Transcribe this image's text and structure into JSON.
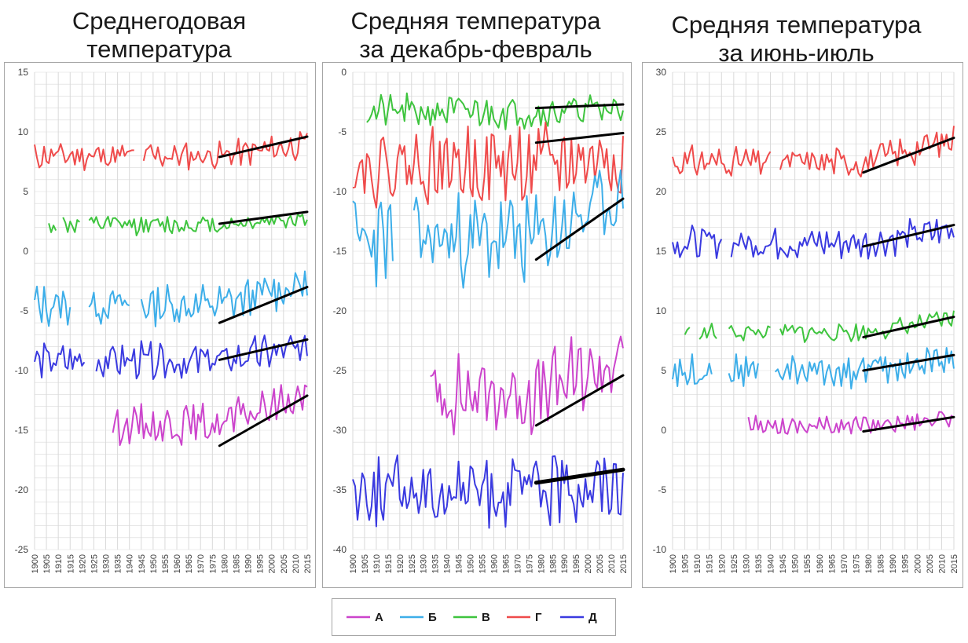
{
  "colors": {
    "A": "#cc44cc",
    "B": "#3daee9",
    "C": "#3ec43e",
    "D": "#ef4b4b",
    "E": "#3a3ae0",
    "trend": "#000000",
    "grid": "#d9d9d9"
  },
  "legend": {
    "items": [
      {
        "key": "A",
        "label": "А"
      },
      {
        "key": "B",
        "label": "Б"
      },
      {
        "key": "C",
        "label": "В"
      },
      {
        "key": "D",
        "label": "Г"
      },
      {
        "key": "E",
        "label": "Д"
      }
    ]
  },
  "chart_data": [
    {
      "type": "line",
      "title": "Среднегодовая температура",
      "title_lines": [
        "Среднегодовая",
        "температура"
      ],
      "xlim": [
        1900,
        2015
      ],
      "ylim": [
        -25,
        15
      ],
      "yticks": [
        15,
        10,
        5,
        0,
        -5,
        -10,
        -15,
        -20,
        -25
      ],
      "series": [
        {
          "key": "D",
          "name": "Г",
          "start": 1900,
          "end": 2015,
          "base": 8.0,
          "amp": 1.0,
          "slope": 0.0,
          "late_slope": 0.025,
          "gaps": [
            [
              1943,
              1945
            ]
          ],
          "seed": 11
        },
        {
          "key": "C",
          "name": "В",
          "start": 1906,
          "end": 2015,
          "base": 2.2,
          "amp": 0.7,
          "slope": 0.0,
          "late_slope": 0.018,
          "gaps": [
            [
              1910,
              1911
            ],
            [
              1920,
              1922
            ]
          ],
          "seed": 12
        },
        {
          "key": "B",
          "name": "Б",
          "start": 1900,
          "end": 2015,
          "base": -4.5,
          "amp": 1.5,
          "slope": 0.0,
          "late_slope": 0.05,
          "gaps": [
            [
              1916,
              1922
            ],
            [
              1941,
              1944
            ]
          ],
          "seed": 13
        },
        {
          "key": "E",
          "name": "Д",
          "start": 1900,
          "end": 2015,
          "base": -9.2,
          "amp": 1.3,
          "slope": 0.0,
          "late_slope": 0.03,
          "gaps": [
            [
              1922,
              1925
            ]
          ],
          "seed": 14
        },
        {
          "key": "A",
          "name": "А",
          "start": 1933,
          "end": 2015,
          "base": -14.5,
          "amp": 1.4,
          "slope": 0.0,
          "late_slope": 0.07,
          "gaps": [],
          "seed": 15
        }
      ],
      "trends": [
        {
          "x": [
            1978,
            2015
          ],
          "y": [
            7.9,
            9.6
          ],
          "w": 3
        },
        {
          "x": [
            1978,
            2015
          ],
          "y": [
            2.3,
            3.3
          ],
          "w": 3
        },
        {
          "x": [
            1978,
            2015
          ],
          "y": [
            -6.0,
            -3.0
          ],
          "w": 3
        },
        {
          "x": [
            1978,
            2015
          ],
          "y": [
            -9.1,
            -7.4
          ],
          "w": 3
        },
        {
          "x": [
            1978,
            2015
          ],
          "y": [
            -16.3,
            -12.1
          ],
          "w": 3
        }
      ]
    },
    {
      "type": "line",
      "title": "Средняя температура за декабрь-февраль",
      "title_lines": [
        "Средняя температура",
        "за декабрь-февраль"
      ],
      "xlim": [
        1900,
        2015
      ],
      "ylim": [
        -40,
        0
      ],
      "yticks": [
        0,
        -5,
        -10,
        -15,
        -20,
        -25,
        -30,
        -35,
        -40
      ],
      "series": [
        {
          "key": "C",
          "name": "В",
          "start": 1906,
          "end": 2015,
          "base": -3.3,
          "amp": 1.2,
          "slope": 0.0,
          "late_slope": 0.006,
          "gaps": [],
          "seed": 21
        },
        {
          "key": "D",
          "name": "Г",
          "start": 1900,
          "end": 2015,
          "base": -7.8,
          "amp": 2.8,
          "slope": 0.0,
          "late_slope": 0.02,
          "gaps": [],
          "seed": 22
        },
        {
          "key": "B",
          "name": "Б",
          "start": 1900,
          "end": 2015,
          "base": -14.0,
          "amp": 3.2,
          "slope": 0.0,
          "late_slope": 0.1,
          "gaps": [
            [
              1918,
              1925
            ]
          ],
          "seed": 23
        },
        {
          "key": "A",
          "name": "А",
          "start": 1933,
          "end": 2015,
          "base": -27.0,
          "amp": 2.8,
          "slope": 0.0,
          "late_slope": 0.08,
          "gaps": [],
          "seed": 24
        },
        {
          "key": "E",
          "name": "Д",
          "start": 1900,
          "end": 2015,
          "base": -35.0,
          "amp": 2.6,
          "slope": 0.0,
          "late_slope": 0.02,
          "gaps": [],
          "seed": 25
        }
      ],
      "trends": [
        {
          "x": [
            1978,
            2015
          ],
          "y": [
            -3.0,
            -2.7
          ],
          "w": 3
        },
        {
          "x": [
            1978,
            2015
          ],
          "y": [
            -5.9,
            -5.1
          ],
          "w": 3
        },
        {
          "x": [
            1978,
            2015
          ],
          "y": [
            -15.7,
            -10.6
          ],
          "w": 3
        },
        {
          "x": [
            1978,
            2015
          ],
          "y": [
            -29.6,
            -25.4
          ],
          "w": 3
        },
        {
          "x": [
            1978,
            2015
          ],
          "y": [
            -34.4,
            -33.3
          ],
          "w": 5
        }
      ]
    },
    {
      "type": "line",
      "title": "Средняя температура за июнь-июль",
      "title_lines": [
        "Средняя температура",
        "за июнь-июль"
      ],
      "xlim": [
        1900,
        2015
      ],
      "ylim": [
        -10,
        30
      ],
      "yticks": [
        30,
        25,
        20,
        15,
        10,
        5,
        0,
        -5,
        -10
      ],
      "series": [
        {
          "key": "D",
          "name": "Г",
          "start": 1900,
          "end": 2015,
          "base": 22.5,
          "amp": 1.1,
          "slope": 0.0,
          "late_slope": 0.05,
          "gaps": [
            [
              1941,
              1943
            ]
          ],
          "seed": 31
        },
        {
          "key": "E",
          "name": "Д",
          "start": 1900,
          "end": 2015,
          "base": 15.7,
          "amp": 1.2,
          "slope": 0.0,
          "late_slope": 0.03,
          "gaps": [
            [
              1921,
              1923
            ]
          ],
          "seed": 32
        },
        {
          "key": "C",
          "name": "В",
          "start": 1905,
          "end": 2015,
          "base": 8.2,
          "amp": 0.7,
          "slope": 0.0,
          "late_slope": 0.03,
          "gaps": [
            [
              1908,
              1910
            ],
            [
              1919,
              1922
            ],
            [
              1941,
              1943
            ]
          ],
          "seed": 33
        },
        {
          "key": "B",
          "name": "Б",
          "start": 1900,
          "end": 2015,
          "base": 5.0,
          "amp": 1.2,
          "slope": 0.0,
          "late_slope": 0.025,
          "gaps": [
            [
              1917,
              1922
            ],
            [
              1936,
              1941
            ]
          ],
          "seed": 34
        },
        {
          "key": "A",
          "name": "А",
          "start": 1931,
          "end": 2015,
          "base": 0.4,
          "amp": 0.7,
          "slope": 0.0,
          "late_slope": 0.02,
          "gaps": [],
          "seed": 35
        }
      ],
      "trends": [
        {
          "x": [
            1978,
            2015
          ],
          "y": [
            21.6,
            24.5
          ],
          "w": 3
        },
        {
          "x": [
            1978,
            2015
          ],
          "y": [
            15.4,
            17.2
          ],
          "w": 3
        },
        {
          "x": [
            1978,
            2015
          ],
          "y": [
            7.8,
            9.5
          ],
          "w": 3
        },
        {
          "x": [
            1978,
            2015
          ],
          "y": [
            5.0,
            6.3
          ],
          "w": 3
        },
        {
          "x": [
            1978,
            2015
          ],
          "y": [
            -0.1,
            1.1
          ],
          "w": 3
        }
      ]
    }
  ]
}
